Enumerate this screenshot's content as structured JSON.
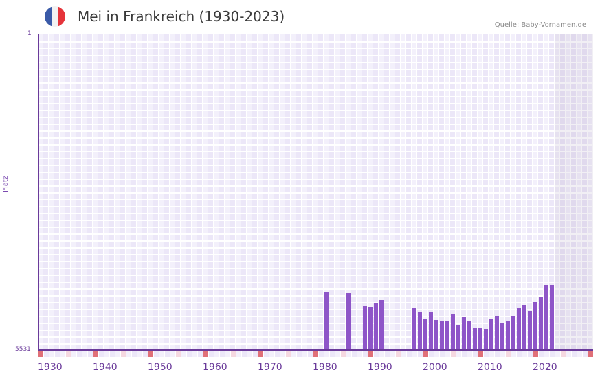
{
  "header": {
    "title": "Mei in Frankreich (1930-2023)",
    "source": "Quelle: Baby-Vornamen.de",
    "flag": {
      "icon": "france-flag-icon",
      "colors": [
        "#3a5aa8",
        "#f2f2f2",
        "#e5343a"
      ]
    }
  },
  "axis": {
    "y_label": "Platz",
    "y_top": "1",
    "y_bottom": "5531",
    "x_ticks": [
      "1930",
      "1940",
      "1950",
      "1960",
      "1970",
      "1980",
      "1990",
      "2000",
      "2010",
      "2020"
    ]
  },
  "colors": {
    "bar": "#8e55c8",
    "axis": "#6a3a9a",
    "grid_a": "#f3f0fb",
    "grid_b": "#ece7f8",
    "decade_marker": "#e07078",
    "half_decade_marker": "#f5d8e0",
    "future_shade": "#e6e1ee"
  },
  "chart_data": {
    "type": "bar",
    "title": "Mei in Frankreich (1930-2023)",
    "xlabel": "",
    "ylabel": "Platz",
    "ylim": [
      5531,
      1
    ],
    "x_range": [
      1930,
      2030
    ],
    "y_inverted": true,
    "grid": true,
    "legend": null,
    "note": "Rank values (lower = more popular); bars drawn from bottom (rank 5531) upward",
    "categories": [
      1982,
      1986,
      1989,
      1990,
      1991,
      1992,
      1998,
      1999,
      2000,
      2001,
      2002,
      2003,
      2004,
      2005,
      2006,
      2007,
      2008,
      2009,
      2010,
      2011,
      2012,
      2013,
      2014,
      2015,
      2016,
      2017,
      2018,
      2019,
      2020,
      2021,
      2022,
      2023
    ],
    "values": [
      4523,
      4535,
      4763,
      4775,
      4703,
      4655,
      4787,
      4871,
      4991,
      4859,
      5003,
      5015,
      5027,
      4895,
      5087,
      4955,
      5015,
      5135,
      5135,
      5159,
      4991,
      4931,
      5063,
      5015,
      4931,
      4799,
      4739,
      4847,
      4691,
      4607,
      4391,
      4391
    ]
  }
}
